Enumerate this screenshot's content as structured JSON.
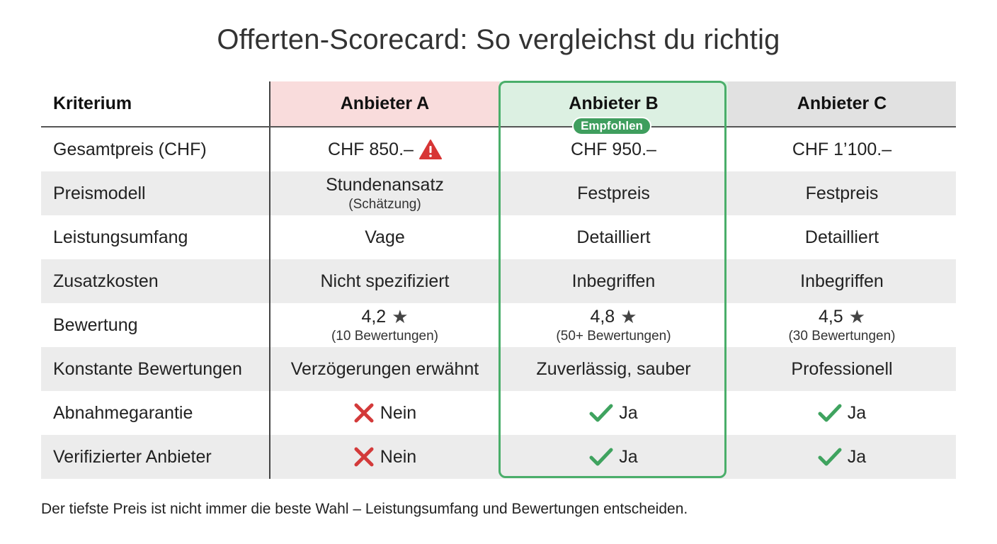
{
  "title": "Offerten-Scorecard: So vergleichst du richtig",
  "header": {
    "criterion": "Kriterium",
    "providers": [
      "Anbieter A",
      "Anbieter B",
      "Anbieter C"
    ],
    "recommended_badge": "Empfohlen"
  },
  "rows": [
    {
      "label": "Gesamtpreis (CHF)",
      "a": "CHF 850.–",
      "a_icon": "warning-icon",
      "b": "CHF 950.–",
      "c": "CHF 1’100.–"
    },
    {
      "label": "Preismodell",
      "a": "Stundenansatz",
      "a_sub": "(Schätzung)",
      "b": "Festpreis",
      "c": "Festpreis"
    },
    {
      "label": "Leistungsumfang",
      "a": "Vage",
      "b": "Detailliert",
      "c": "Detailliert"
    },
    {
      "label": "Zusatzkosten",
      "a": "Nicht spezifiziert",
      "b": "Inbegriffen",
      "c": "Inbegriffen"
    },
    {
      "label": "Bewertung",
      "a": "4,2",
      "a_sub": "(10 Bewertungen)",
      "b": "4,8",
      "b_sub": "(50+ Bewertungen)",
      "c": "4,5",
      "c_sub": "(30 Bewertungen)",
      "icon": "star-icon"
    },
    {
      "label": "Konstante Bewertungen",
      "a": "Verzögerungen erwähnt",
      "b": "Zuverlässig, sauber",
      "c": "Professionell"
    },
    {
      "label": "Abnahmegarantie",
      "a": "Nein",
      "a_icon": "cross-icon",
      "b": "Ja",
      "b_icon": "check-icon",
      "c": "Ja",
      "c_icon": "check-icon"
    },
    {
      "label": "Verifizierter Anbieter",
      "a": "Nein",
      "a_icon": "cross-icon",
      "b": "Ja",
      "b_icon": "check-icon",
      "c": "Ja",
      "c_icon": "check-icon"
    }
  ],
  "colors": {
    "header_a": "#f9dcdc",
    "header_b": "#dcf0e2",
    "header_c": "#e1e1e1",
    "recommended_border": "#4aae6a",
    "badge": "#3f9e5e",
    "check": "#3fa35f",
    "cross": "#d33a3a",
    "warning": "#d73535"
  },
  "footer": "Der tiefste Preis ist nicht immer die beste Wahl – Leistungsumfang und Bewertungen entscheiden."
}
